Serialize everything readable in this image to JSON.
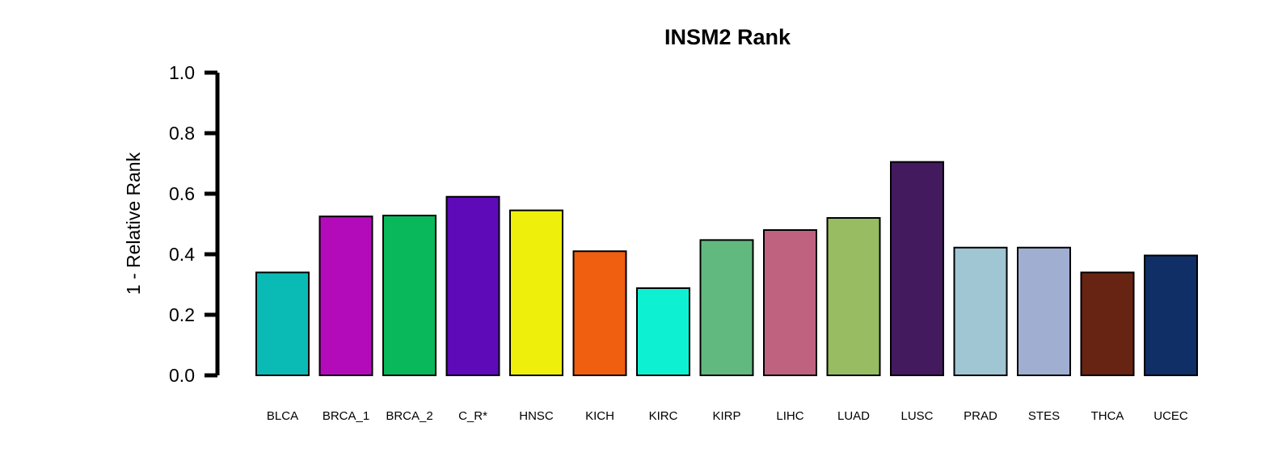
{
  "chart_data": {
    "type": "bar",
    "title": "INSM2 Rank",
    "ylabel": "1 - Relative Rank",
    "xlabel": "",
    "ylim": [
      0,
      1.0
    ],
    "yticks": [
      "0.0",
      "0.2",
      "0.4",
      "0.6",
      "0.8",
      "1.0"
    ],
    "grid": false,
    "categories": [
      "BLCA",
      "BRCA_1",
      "BRCA_2",
      "C_R*",
      "HNSC",
      "KICH",
      "KIRC",
      "KIRP",
      "LIHC",
      "LUAD",
      "LUSC",
      "PRAD",
      "STES",
      "THCA",
      "UCEC"
    ],
    "values": [
      0.34,
      0.525,
      0.528,
      0.59,
      0.545,
      0.41,
      0.288,
      0.447,
      0.48,
      0.52,
      0.705,
      0.422,
      0.422,
      0.34,
      0.396
    ],
    "colors": [
      "#0ABAB5",
      "#B30BBA",
      "#08B85A",
      "#5E0AB9",
      "#EEF00C",
      "#F05F0F",
      "#0EF0D2",
      "#62B97F",
      "#BE627F",
      "#97BC62",
      "#441A5E",
      "#A0C5D3",
      "#A0AED2",
      "#672412",
      "#0F2F66"
    ]
  }
}
